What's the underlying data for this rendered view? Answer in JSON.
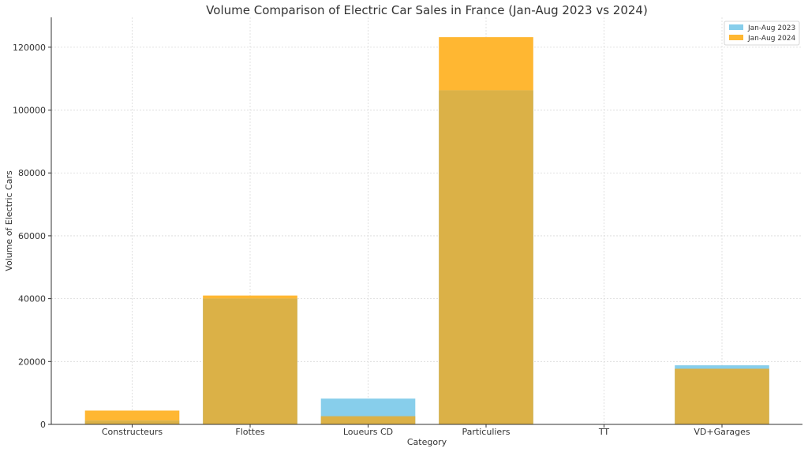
{
  "chart_data": {
    "type": "bar",
    "title": "Volume Comparison of Electric Car Sales in France (Jan-Aug 2023 vs 2024)",
    "xlabel": "Category",
    "ylabel": "Volume of Electric Cars",
    "categories": [
      "Constructeurs",
      "Flottes",
      "Loueurs CD",
      "Particuliers",
      "TT",
      "VD+Garages"
    ],
    "series": [
      {
        "name": "Jan-Aug 2023",
        "color": "#87CEEB",
        "values": [
          1200,
          40000,
          8200,
          106300,
          0,
          18800
        ]
      },
      {
        "name": "Jan-Aug 2024",
        "color": "#FFB732",
        "values": [
          4400,
          41000,
          2600,
          123200,
          0,
          17700
        ]
      }
    ],
    "overlap_color": "#DBB147",
    "ylim": [
      0,
      129500
    ],
    "yticks": [
      0,
      20000,
      40000,
      60000,
      80000,
      100000,
      120000
    ],
    "grid": true,
    "legend": "top-right"
  }
}
